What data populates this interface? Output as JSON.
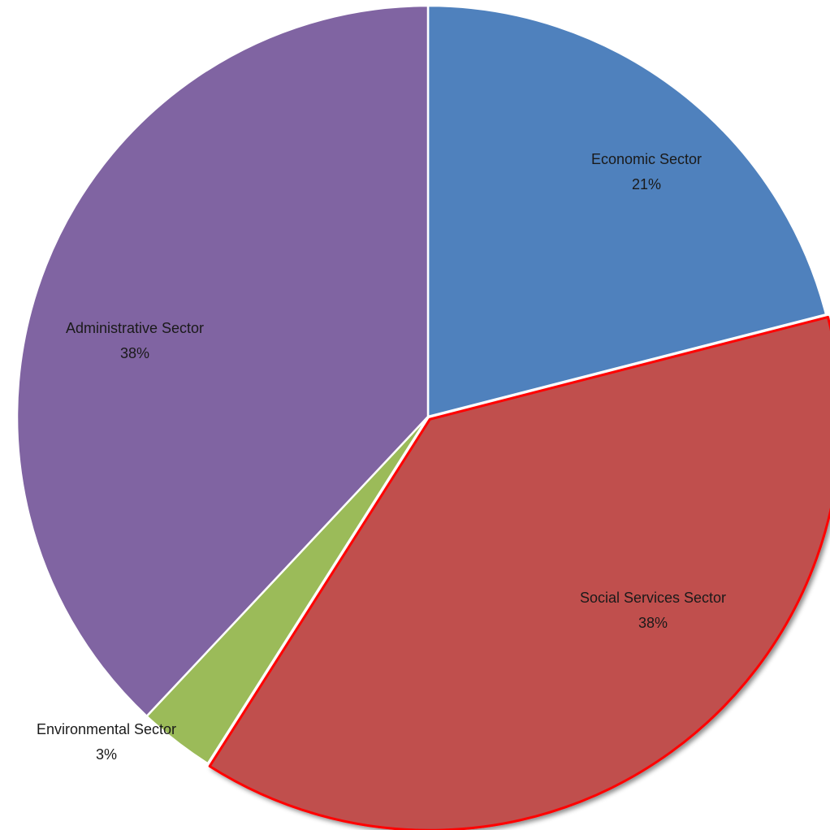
{
  "chart_data": {
    "type": "pie",
    "title": "",
    "slices": [
      {
        "name": "Economic Sector",
        "percent_label": "21%",
        "value": 21,
        "color": "#4f81bd",
        "outline": "#ffffff"
      },
      {
        "name": "Social Services Sector",
        "percent_label": "38%",
        "value": 38,
        "color": "#c0504d",
        "outline": "#ff0000",
        "exploded": true
      },
      {
        "name": "Environmental Sector",
        "percent_label": "3%",
        "value": 3,
        "color": "#9bbb59",
        "outline": "#ffffff"
      },
      {
        "name": "Administrative Sector",
        "percent_label": "38%",
        "value": 38,
        "color": "#8064a2",
        "outline": "#ffffff"
      }
    ],
    "start_angle": "12 o'clock",
    "direction": "clockwise",
    "legend": "none",
    "data_labels": "category name and percentage"
  }
}
